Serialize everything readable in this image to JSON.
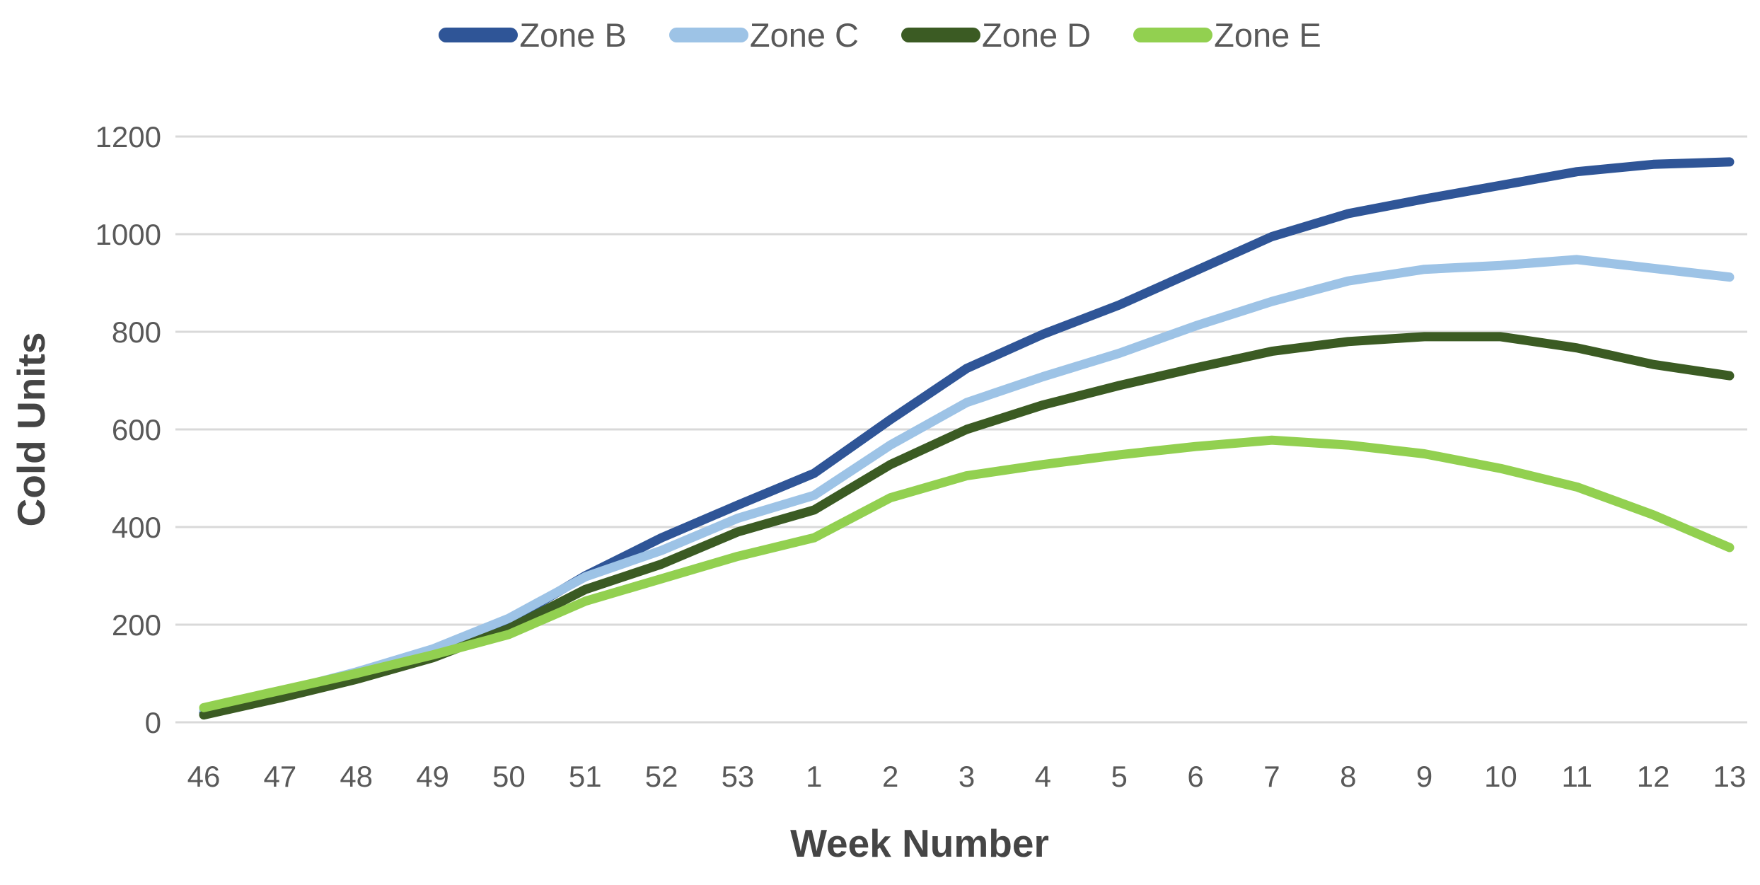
{
  "chart_data": {
    "type": "line",
    "title": "",
    "xlabel": "Week Number",
    "ylabel": "Cold Units",
    "categories": [
      "46",
      "47",
      "48",
      "49",
      "50",
      "51",
      "52",
      "53",
      "1",
      "2",
      "3",
      "4",
      "5",
      "6",
      "7",
      "8",
      "9",
      "10",
      "11",
      "12",
      "13"
    ],
    "series": [
      {
        "name": "Zone B",
        "color": "#2F5597",
        "values": [
          20,
          55,
          95,
          145,
          208,
          300,
          378,
          445,
          510,
          620,
          725,
          795,
          855,
          925,
          995,
          1042,
          1072,
          1100,
          1128,
          1143,
          1148
        ]
      },
      {
        "name": "Zone C",
        "color": "#9DC3E6",
        "values": [
          25,
          62,
          103,
          150,
          213,
          298,
          352,
          418,
          465,
          568,
          655,
          708,
          756,
          812,
          862,
          904,
          928,
          936,
          948,
          930,
          912
        ]
      },
      {
        "name": "Zone D",
        "color": "#3B5B23",
        "values": [
          15,
          50,
          88,
          132,
          192,
          272,
          324,
          390,
          435,
          528,
          600,
          650,
          690,
          726,
          760,
          780,
          790,
          790,
          767,
          733,
          710
        ]
      },
      {
        "name": "Zone E",
        "color": "#92D050",
        "values": [
          30,
          65,
          100,
          138,
          180,
          248,
          294,
          340,
          378,
          460,
          505,
          528,
          548,
          565,
          578,
          568,
          550,
          520,
          482,
          425,
          358
        ]
      }
    ],
    "ylim": [
      0,
      1200
    ],
    "ytick_step": 200,
    "ytick_labels": [
      "0",
      "200",
      "400",
      "600",
      "800",
      "1000",
      "1200"
    ],
    "grid": "horizontal-only",
    "legend_position": "top-center",
    "colors": {
      "gridline": "#D9D9D9",
      "tick_text": "#595959",
      "axis_title_text": "#454545",
      "background": "#FFFFFF"
    }
  }
}
